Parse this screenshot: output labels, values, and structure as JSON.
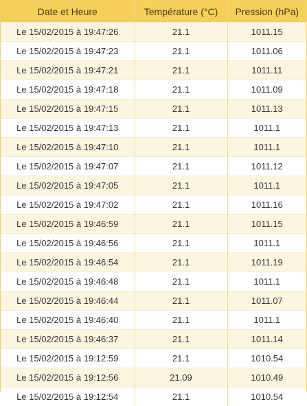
{
  "table": {
    "headers": [
      "Date et Heure",
      "Température (°C)",
      "Pression (hPa)"
    ],
    "rows": [
      [
        "Le 15/02/2015 à 19:47:26",
        "21.1",
        "1011.15"
      ],
      [
        "Le 15/02/2015 à 19:47:23",
        "21.1",
        "1011.06"
      ],
      [
        "Le 15/02/2015 à 19:47:21",
        "21.1",
        "1011.11"
      ],
      [
        "Le 15/02/2015 à 19:47:18",
        "21.1",
        "1011.09"
      ],
      [
        "Le 15/02/2015 à 19:47:15",
        "21.1",
        "1011.13"
      ],
      [
        "Le 15/02/2015 à 19:47:13",
        "21.1",
        "1011.1"
      ],
      [
        "Le 15/02/2015 à 19:47:10",
        "21.1",
        "1011.1"
      ],
      [
        "Le 15/02/2015 à 19:47:07",
        "21.1",
        "1011.12"
      ],
      [
        "Le 15/02/2015 à 19:47:05",
        "21.1",
        "1011.1"
      ],
      [
        "Le 15/02/2015 à 19:47:02",
        "21.1",
        "1011.16"
      ],
      [
        "Le 15/02/2015 à 19:46:59",
        "21.1",
        "1011.15"
      ],
      [
        "Le 15/02/2015 à 19:46:56",
        "21.1",
        "1011.1"
      ],
      [
        "Le 15/02/2015 à 19:46:54",
        "21.1",
        "1011.19"
      ],
      [
        "Le 15/02/2015 à 19:46:48",
        "21.1",
        "1011.1"
      ],
      [
        "Le 15/02/2015 à 19:46:44",
        "21.1",
        "1011.07"
      ],
      [
        "Le 15/02/2015 à 19:46:40",
        "21.1",
        "1011.1"
      ],
      [
        "Le 15/02/2015 à 19:46:37",
        "21.1",
        "1011.14"
      ],
      [
        "Le 15/02/2015 à 19:12:59",
        "21.1",
        "1010.54"
      ],
      [
        "Le 15/02/2015 à 19:12:56",
        "21.09",
        "1010.49"
      ],
      [
        "Le 15/02/2015 à 19:12:54",
        "21.1",
        "1010.54"
      ]
    ]
  },
  "colors": {
    "header_bg": "#f6cf58",
    "odd_row_bg": "#fdf6df",
    "even_row_bg": "#ffffff",
    "border": "#f2d06b"
  }
}
